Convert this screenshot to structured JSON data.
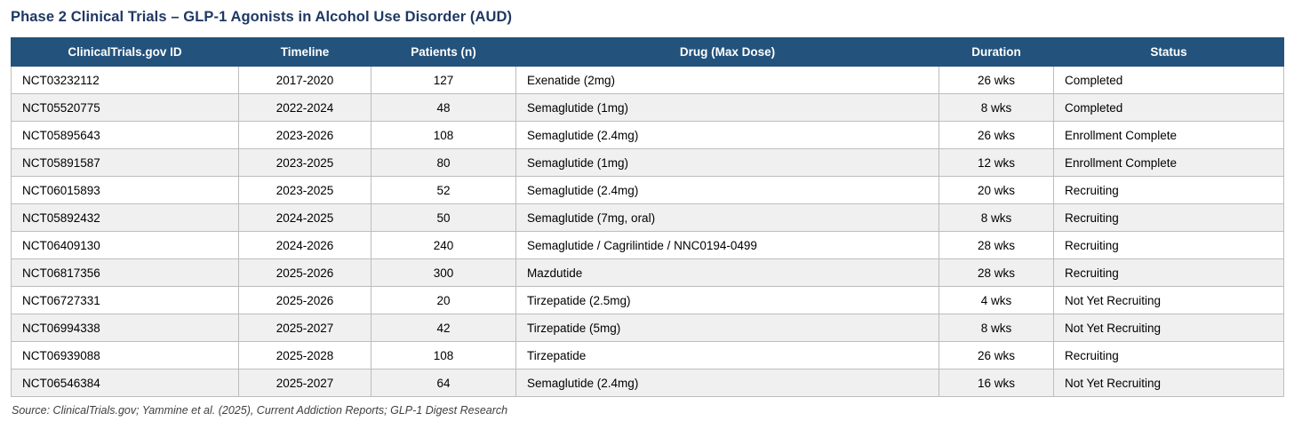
{
  "chart_data": {
    "type": "table",
    "title": "Phase 2 Clinical Trials – GLP-1 Agonists in Alcohol Use Disorder (AUD)",
    "columns": [
      "ClinicalTrials.gov ID",
      "Timeline",
      "Patients (n)",
      "Drug (Max Dose)",
      "Duration",
      "Status"
    ],
    "column_align": [
      "left",
      "center",
      "center",
      "left",
      "center",
      "left"
    ],
    "rows": [
      [
        "NCT03232112",
        "2017-2020",
        "127",
        "Exenatide (2mg)",
        "26 wks",
        "Completed"
      ],
      [
        "NCT05520775",
        "2022-2024",
        "48",
        "Semaglutide (1mg)",
        "8 wks",
        "Completed"
      ],
      [
        "NCT05895643",
        "2023-2026",
        "108",
        "Semaglutide (2.4mg)",
        "26 wks",
        "Enrollment Complete"
      ],
      [
        "NCT05891587",
        "2023-2025",
        "80",
        "Semaglutide (1mg)",
        "12 wks",
        "Enrollment Complete"
      ],
      [
        "NCT06015893",
        "2023-2025",
        "52",
        "Semaglutide (2.4mg)",
        "20 wks",
        "Recruiting"
      ],
      [
        "NCT05892432",
        "2024-2025",
        "50",
        "Semaglutide (7mg, oral)",
        "8 wks",
        "Recruiting"
      ],
      [
        "NCT06409130",
        "2024-2026",
        "240",
        "Semaglutide / Cagrilintide / NNC0194-0499",
        "28 wks",
        "Recruiting"
      ],
      [
        "NCT06817356",
        "2025-2026",
        "300",
        "Mazdutide",
        "28 wks",
        "Recruiting"
      ],
      [
        "NCT06727331",
        "2025-2026",
        "20",
        "Tirzepatide (2.5mg)",
        "4 wks",
        "Not Yet Recruiting"
      ],
      [
        "NCT06994338",
        "2025-2027",
        "42",
        "Tirzepatide (5mg)",
        "8 wks",
        "Not Yet Recruiting"
      ],
      [
        "NCT06939088",
        "2025-2028",
        "108",
        "Tirzepatide",
        "26 wks",
        "Recruiting"
      ],
      [
        "NCT06546384",
        "2025-2027",
        "64",
        "Semaglutide (2.4mg)",
        "16 wks",
        "Not Yet Recruiting"
      ]
    ],
    "source": "Source: ClinicalTrials.gov; Yammine et al. (2025), Current Addiction Reports; GLP-1 Digest Research",
    "layout": {
      "zebra_striping": true,
      "header_position": "top",
      "grid": true
    }
  },
  "colors": {
    "title_text": "#1F3864",
    "header_bg": "#23527C",
    "header_text": "#FFFFFF",
    "row_bg": "#FFFFFF",
    "row_alt_bg": "#F0F0F0",
    "cell_border": "#BDBDBD",
    "source_text": "#404040"
  }
}
